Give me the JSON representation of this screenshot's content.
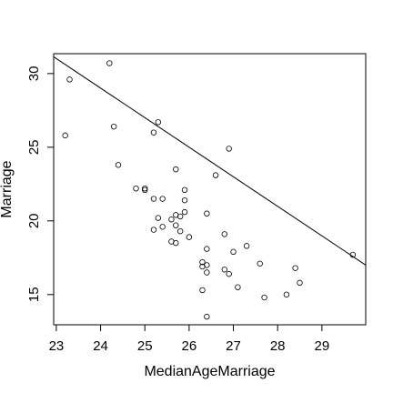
{
  "chart_data": {
    "type": "scatter",
    "title": "",
    "xlabel": "MedianAgeMarriage",
    "ylabel": "Marriage",
    "xlim": [
      22.94,
      29.99
    ],
    "ylim": [
      12.95,
      31.35
    ],
    "x_ticks": [
      23,
      24,
      25,
      26,
      27,
      28,
      29
    ],
    "y_ticks": [
      15,
      20,
      25,
      30
    ],
    "grid": false,
    "points": [
      {
        "x": 23.2,
        "y": 25.8
      },
      {
        "x": 23.3,
        "y": 29.6
      },
      {
        "x": 24.2,
        "y": 30.7
      },
      {
        "x": 24.3,
        "y": 26.4
      },
      {
        "x": 24.4,
        "y": 23.8
      },
      {
        "x": 24.8,
        "y": 22.2
      },
      {
        "x": 25.0,
        "y": 22.1
      },
      {
        "x": 25.0,
        "y": 22.2
      },
      {
        "x": 25.2,
        "y": 26.0
      },
      {
        "x": 25.3,
        "y": 26.7
      },
      {
        "x": 25.2,
        "y": 21.5
      },
      {
        "x": 25.4,
        "y": 21.5
      },
      {
        "x": 25.3,
        "y": 20.2
      },
      {
        "x": 25.2,
        "y": 19.4
      },
      {
        "x": 25.4,
        "y": 19.6
      },
      {
        "x": 25.6,
        "y": 20.1
      },
      {
        "x": 25.6,
        "y": 18.6
      },
      {
        "x": 25.7,
        "y": 18.5
      },
      {
        "x": 25.7,
        "y": 19.7
      },
      {
        "x": 25.7,
        "y": 20.4
      },
      {
        "x": 25.8,
        "y": 20.3
      },
      {
        "x": 25.8,
        "y": 19.3
      },
      {
        "x": 25.9,
        "y": 20.6
      },
      {
        "x": 25.9,
        "y": 21.4
      },
      {
        "x": 25.9,
        "y": 22.1
      },
      {
        "x": 25.7,
        "y": 23.5
      },
      {
        "x": 26.0,
        "y": 18.9
      },
      {
        "x": 26.3,
        "y": 17.2
      },
      {
        "x": 26.3,
        "y": 16.9
      },
      {
        "x": 26.4,
        "y": 17.0
      },
      {
        "x": 26.4,
        "y": 16.5
      },
      {
        "x": 26.4,
        "y": 18.1
      },
      {
        "x": 26.4,
        "y": 20.5
      },
      {
        "x": 26.3,
        "y": 15.3
      },
      {
        "x": 26.4,
        "y": 13.5
      },
      {
        "x": 26.6,
        "y": 23.1
      },
      {
        "x": 26.8,
        "y": 19.1
      },
      {
        "x": 26.8,
        "y": 16.7
      },
      {
        "x": 26.9,
        "y": 16.4
      },
      {
        "x": 26.9,
        "y": 24.9
      },
      {
        "x": 27.0,
        "y": 17.9
      },
      {
        "x": 27.1,
        "y": 15.5
      },
      {
        "x": 27.3,
        "y": 18.3
      },
      {
        "x": 27.6,
        "y": 17.1
      },
      {
        "x": 27.7,
        "y": 14.8
      },
      {
        "x": 28.2,
        "y": 15.0
      },
      {
        "x": 28.4,
        "y": 16.8
      },
      {
        "x": 28.5,
        "y": 15.8
      },
      {
        "x": 29.7,
        "y": 17.7
      }
    ],
    "line": {
      "x": [
        22.94,
        29.99
      ],
      "y": [
        31.14,
        17.0
      ]
    }
  },
  "colors": {
    "points": "#000000",
    "line": "#000000",
    "axis": "#000000",
    "background": "#ffffff"
  }
}
